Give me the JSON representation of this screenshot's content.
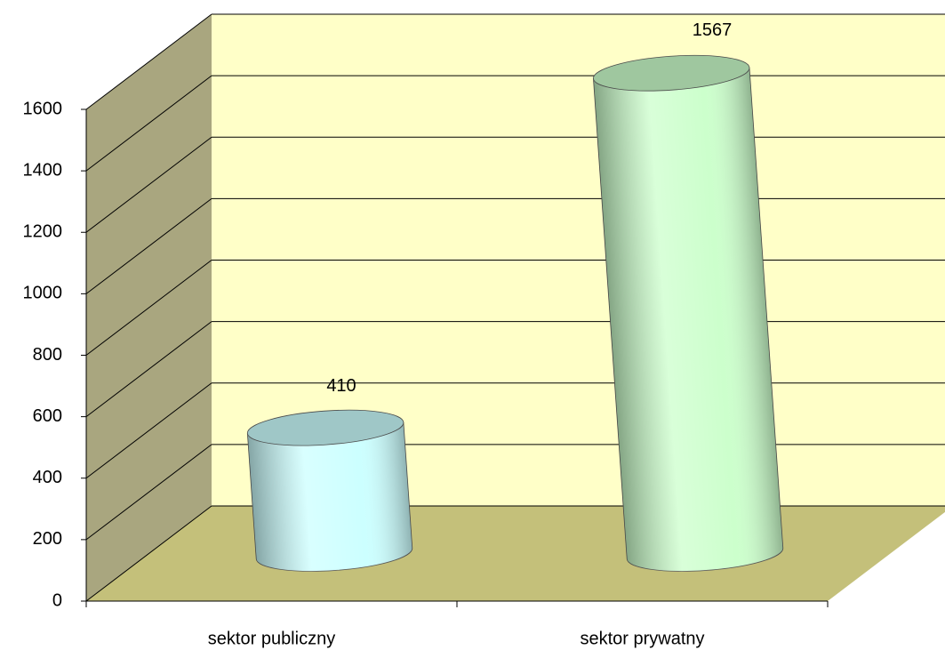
{
  "chart_data": {
    "type": "bar3d-cylinder",
    "categories": [
      "sektor publiczny",
      "sektor prywatny"
    ],
    "values": [
      410,
      1567
    ],
    "colors": [
      "#ccffff",
      "#ccffcc"
    ],
    "ylim": [
      0,
      1600
    ],
    "yticks": [
      0,
      200,
      400,
      600,
      800,
      1000,
      1200,
      1400,
      1600
    ],
    "grid": true
  }
}
